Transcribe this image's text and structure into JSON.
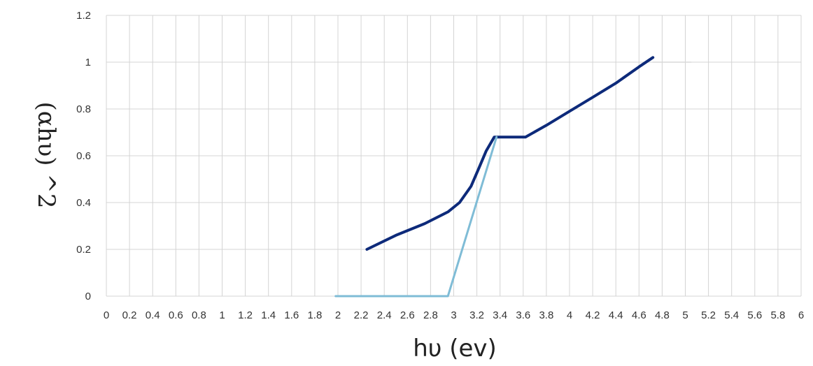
{
  "chart_data": {
    "type": "line",
    "title": "",
    "xlabel": "hυ (ev)",
    "ylabel": "(αhυ) ^2",
    "xlim": [
      0,
      6
    ],
    "ylim": [
      0,
      1.2
    ],
    "grid": true,
    "x_ticks": [
      "0",
      "0.2",
      "0.4",
      "0.6",
      "0.8",
      "1",
      "1.2",
      "1.4",
      "1.6",
      "1.8",
      "2",
      "2.2",
      "2.4",
      "2.6",
      "2.8",
      "3",
      "3.2",
      "3.4",
      "3.6",
      "3.8",
      "4",
      "4.2",
      "4.4",
      "4.6",
      "4.8",
      "5",
      "5.2",
      "5.4",
      "5.6",
      "5.8",
      "6"
    ],
    "y_ticks": [
      "0",
      "0.2",
      "0.4",
      "0.6",
      "0.8",
      "1",
      "1.2"
    ],
    "series": [
      {
        "color": "#0d2a7a",
        "x": [
          2.25,
          2.5,
          2.75,
          2.95,
          3.05,
          3.15,
          3.22,
          3.28,
          3.35,
          3.42,
          3.5,
          3.62,
          3.8,
          4.0,
          4.2,
          4.4,
          4.6,
          4.72
        ],
        "y": [
          0.2,
          0.26,
          0.31,
          0.36,
          0.4,
          0.47,
          0.55,
          0.62,
          0.68,
          0.68,
          0.68,
          0.68,
          0.73,
          0.79,
          0.85,
          0.91,
          0.98,
          1.02
        ]
      },
      {
        "color": "#7fbcd6",
        "x": [
          1.98,
          2.95,
          3.37
        ],
        "y": [
          0.0,
          0.0,
          0.68
        ]
      },
      {
        "color": "#d8d8d8",
        "x": [
          4.72,
          5.05
        ],
        "y": [
          1.0,
          1.0
        ]
      }
    ]
  }
}
